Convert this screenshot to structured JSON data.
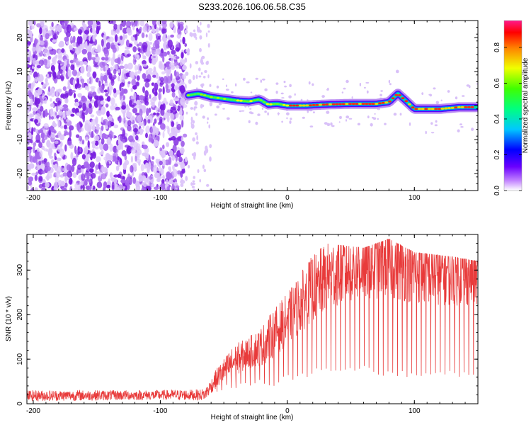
{
  "title": "S233.2026.106.06.58.C35",
  "colors": {
    "noise": "#8a2be2",
    "snr_line": "#e83a3a",
    "frame": "#000000"
  },
  "chart_data": [
    {
      "type": "heatmap",
      "name": "spectrogram",
      "title": "S233.2026.106.06.58.C35",
      "xlabel": "Height of straight line (km)",
      "ylabel": "Frequency (Hz)",
      "xlim": [
        -205,
        150
      ],
      "ylim": [
        -25,
        25
      ],
      "xticks": [
        -200,
        -100,
        0,
        100
      ],
      "yticks": [
        -20,
        -10,
        0,
        10,
        20
      ],
      "noise_region": {
        "x_range": [
          -205,
          -80
        ],
        "sparse_x_range": [
          -80,
          -60
        ]
      },
      "signal_track": [
        {
          "x": -78,
          "y": 3.0
        },
        {
          "x": -70,
          "y": 3.5
        },
        {
          "x": -60,
          "y": 2.5
        },
        {
          "x": -50,
          "y": 2.0
        },
        {
          "x": -40,
          "y": 1.5
        },
        {
          "x": -30,
          "y": 1.2
        },
        {
          "x": -22,
          "y": 1.8
        },
        {
          "x": -15,
          "y": 0.3
        },
        {
          "x": -8,
          "y": 0.5
        },
        {
          "x": 0,
          "y": 0.0
        },
        {
          "x": 15,
          "y": 0.0
        },
        {
          "x": 30,
          "y": 0.3
        },
        {
          "x": 50,
          "y": 0.5
        },
        {
          "x": 70,
          "y": 0.5
        },
        {
          "x": 80,
          "y": 1.0
        },
        {
          "x": 87,
          "y": 3.5
        },
        {
          "x": 93,
          "y": 1.5
        },
        {
          "x": 100,
          "y": -1.0
        },
        {
          "x": 120,
          "y": -1.0
        },
        {
          "x": 135,
          "y": -0.5
        },
        {
          "x": 150,
          "y": -0.5
        }
      ],
      "colorbar": {
        "label": "Normalized spectral amplitude",
        "range": [
          0,
          0.95
        ],
        "ticks": [
          "0.0",
          "0.2",
          "0.4",
          "0.6",
          "0.8"
        ]
      }
    },
    {
      "type": "line",
      "name": "snr",
      "xlabel": "Height of straight line (km)",
      "ylabel": "SNR (10 * v/v)",
      "xlim": [
        -205,
        150
      ],
      "ylim": [
        0,
        380
      ],
      "xticks": [
        -200,
        -100,
        0,
        100
      ],
      "yticks": [
        0,
        100,
        200,
        300
      ],
      "series": [
        {
          "name": "SNR",
          "envelope": [
            {
              "x": -205,
              "lo": 5,
              "hi": 50
            },
            {
              "x": -100,
              "lo": 5,
              "hi": 45
            },
            {
              "x": -70,
              "lo": 5,
              "hi": 50
            },
            {
              "x": -60,
              "lo": 20,
              "hi": 80
            },
            {
              "x": -45,
              "lo": 30,
              "hi": 160
            },
            {
              "x": -30,
              "lo": 40,
              "hi": 170
            },
            {
              "x": -10,
              "lo": 40,
              "hi": 240
            },
            {
              "x": 0,
              "lo": 50,
              "hi": 260
            },
            {
              "x": 15,
              "lo": 60,
              "hi": 320
            },
            {
              "x": 30,
              "lo": 70,
              "hi": 360
            },
            {
              "x": 60,
              "lo": 70,
              "hi": 350
            },
            {
              "x": 80,
              "lo": 60,
              "hi": 370
            },
            {
              "x": 100,
              "lo": 60,
              "hi": 340
            },
            {
              "x": 130,
              "lo": 60,
              "hi": 330
            },
            {
              "x": 150,
              "lo": 60,
              "hi": 320
            }
          ],
          "mean": [
            {
              "x": -205,
              "y": 18
            },
            {
              "x": -65,
              "y": 20
            },
            {
              "x": -55,
              "y": 60
            },
            {
              "x": -40,
              "y": 100
            },
            {
              "x": -20,
              "y": 130
            },
            {
              "x": 0,
              "y": 190
            },
            {
              "x": 20,
              "y": 260
            },
            {
              "x": 40,
              "y": 300
            },
            {
              "x": 60,
              "y": 310
            },
            {
              "x": 80,
              "y": 320
            },
            {
              "x": 100,
              "y": 300
            },
            {
              "x": 150,
              "y": 290
            }
          ]
        }
      ]
    }
  ]
}
